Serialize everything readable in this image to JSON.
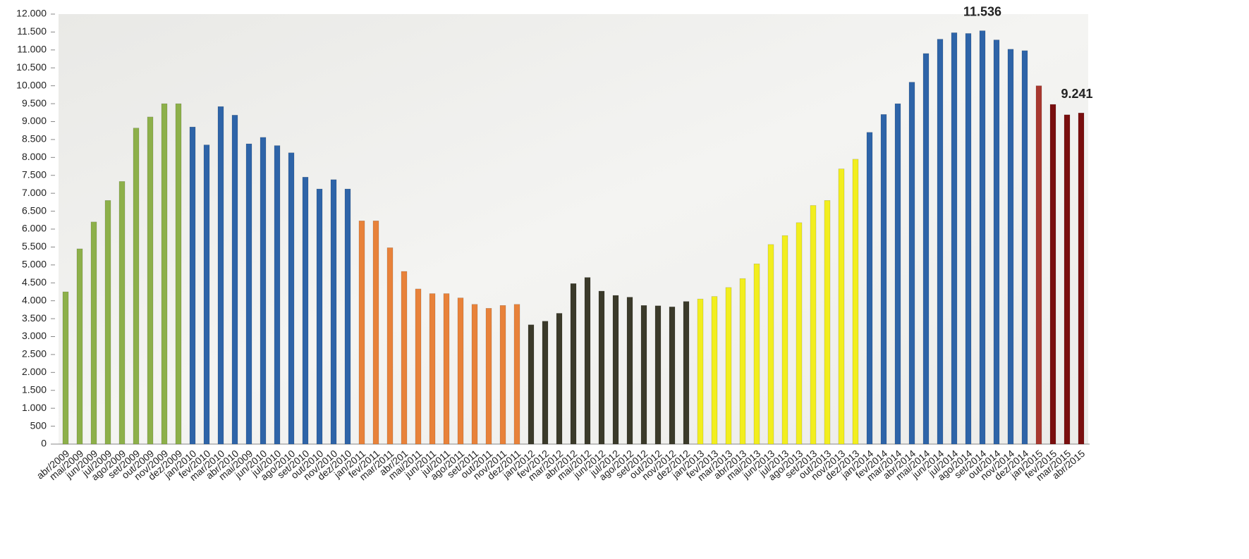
{
  "chart_data": {
    "type": "bar",
    "categories": [
      "abr/2009",
      "mai/2009",
      "jun/2009",
      "jul/2009",
      "ago/2009",
      "set/2009",
      "out/2009",
      "nov/2009",
      "dez/2009",
      "jan/2010",
      "fev/2010",
      "mar/2010",
      "abr/2010",
      "mai/2009",
      "jun/2010",
      "jul/2010",
      "ago/2010",
      "set/2010",
      "out/2010",
      "nov/2010",
      "dez/2010",
      "jan/2011",
      "fev/2011",
      "mar/2011",
      "abr/201",
      "mai/2011",
      "jun/2011",
      "jul/2011",
      "ago/2011",
      "set/2011",
      "out/2011",
      "nov/2011",
      "dez/2011",
      "jan/2012",
      "fev/2012",
      "mar/2012",
      "abr/2012",
      "mai/2012",
      "jun/2012",
      "jul/2012",
      "ago/2012",
      "set/2012",
      "out/2012",
      "nov/2012",
      "dez/2012",
      "jan/2013",
      "fev/2013",
      "mar/2013",
      "abr/2013",
      "mai/2013",
      "jun/2013",
      "jul/2013",
      "ago/2013",
      "set/2013",
      "out/2013",
      "nov/2013",
      "dez/2013",
      "jan/2014",
      "fev/2014",
      "mar/2014",
      "abr/2014",
      "mai/2014",
      "jun/2014",
      "jul/2014",
      "ago/2014",
      "set/2014",
      "out/2014",
      "nov/2014",
      "dez/2014",
      "jan/2015",
      "fev/2015",
      "mar/2015",
      "abr/2015"
    ],
    "values": [
      4250,
      5450,
      6200,
      6800,
      7330,
      8820,
      9130,
      9500,
      9500,
      8850,
      8350,
      9420,
      9180,
      8380,
      8560,
      8330,
      8130,
      7450,
      7120,
      7380,
      7120,
      6230,
      6230,
      5480,
      4820,
      4330,
      4200,
      4200,
      4080,
      3900,
      3790,
      3870,
      3900,
      3330,
      3430,
      3650,
      4480,
      4650,
      4270,
      4150,
      4100,
      3870,
      3860,
      3830,
      3980,
      4050,
      4120,
      4370,
      4620,
      5030,
      5570,
      5820,
      6180,
      6660,
      6800,
      7680,
      7950,
      8700,
      9200,
      9500,
      10100,
      10900,
      11300,
      11480,
      11460,
      11536,
      11280,
      11020,
      10980,
      10000,
      9480,
      9190,
      9241
    ],
    "value_labels": [
      null,
      null,
      null,
      null,
      null,
      null,
      null,
      null,
      null,
      null,
      null,
      null,
      null,
      null,
      null,
      null,
      null,
      null,
      null,
      null,
      null,
      null,
      null,
      null,
      null,
      null,
      null,
      null,
      null,
      null,
      null,
      null,
      null,
      null,
      null,
      null,
      null,
      null,
      null,
      null,
      null,
      null,
      null,
      null,
      null,
      null,
      null,
      null,
      null,
      null,
      null,
      null,
      null,
      null,
      null,
      null,
      null,
      null,
      null,
      null,
      null,
      null,
      null,
      null,
      null,
      "11.536",
      null,
      null,
      null,
      null,
      null,
      null,
      "9.241"
    ],
    "colors": [
      "#8db04a",
      "#8db04a",
      "#8db04a",
      "#8db04a",
      "#8db04a",
      "#8db04a",
      "#8db04a",
      "#8db04a",
      "#8db04a",
      "#2e64a8",
      "#2e64a8",
      "#2e64a8",
      "#2e64a8",
      "#2e64a8",
      "#2e64a8",
      "#2e64a8",
      "#2e64a8",
      "#2e64a8",
      "#2e64a8",
      "#2e64a8",
      "#2e64a8",
      "#e8823a",
      "#e8823a",
      "#e8823a",
      "#e8823a",
      "#e8823a",
      "#e8823a",
      "#e8823a",
      "#e8823a",
      "#e8823a",
      "#e8823a",
      "#e8823a",
      "#e8823a",
      "#3b3a2a",
      "#3b3a2a",
      "#3b3a2a",
      "#3b3a2a",
      "#3b3a2a",
      "#3b3a2a",
      "#3b3a2a",
      "#3b3a2a",
      "#3b3a2a",
      "#3b3a2a",
      "#3b3a2a",
      "#3b3a2a",
      "#f2ee1e",
      "#f2ee1e",
      "#f2ee1e",
      "#f2ee1e",
      "#f2ee1e",
      "#f2ee1e",
      "#f2ee1e",
      "#f2ee1e",
      "#f2ee1e",
      "#f2ee1e",
      "#f2ee1e",
      "#f2ee1e",
      "#2e64a8",
      "#2e64a8",
      "#2e64a8",
      "#2e64a8",
      "#2e64a8",
      "#2e64a8",
      "#2e64a8",
      "#2e64a8",
      "#2e64a8",
      "#2e64a8",
      "#2e64a8",
      "#2e64a8",
      "#a8382f",
      "#7a0f0f",
      "#7a0f0f",
      "#7a0f0f"
    ],
    "ylim": [
      0,
      12000
    ],
    "yticks": [
      0,
      {
        "value": 500,
        "label": "500"
      },
      {
        "value": 1000,
        "label": "1.000"
      },
      {
        "value": 1500,
        "label": "1.500"
      },
      {
        "value": 2000,
        "label": "2.000"
      },
      {
        "value": 2500,
        "label": "2.500"
      },
      {
        "value": 3000,
        "label": "3.000"
      },
      {
        "value": 3500,
        "label": "3.500"
      },
      {
        "value": 4000,
        "label": "4.000"
      },
      {
        "value": 4500,
        "label": "4.500"
      },
      {
        "value": 5000,
        "label": "5.000"
      },
      {
        "value": 5500,
        "label": "5.500"
      },
      {
        "value": 6000,
        "label": "6.000"
      },
      {
        "value": 6500,
        "label": "6.500"
      },
      {
        "value": 7000,
        "label": "7.000"
      },
      {
        "value": 7500,
        "label": "7.500"
      },
      {
        "value": 8000,
        "label": "8.000"
      },
      {
        "value": 8500,
        "label": "8.500"
      },
      {
        "value": 9000,
        "label": "9.000"
      },
      {
        "value": 9500,
        "label": "9.500"
      },
      {
        "value": 10000,
        "label": "10.000"
      },
      {
        "value": 10500,
        "label": "10.500"
      },
      {
        "value": 11000,
        "label": "11.000"
      },
      {
        "value": 11500,
        "label": "11.500"
      },
      {
        "value": 12000,
        "label": "12.000"
      }
    ]
  }
}
